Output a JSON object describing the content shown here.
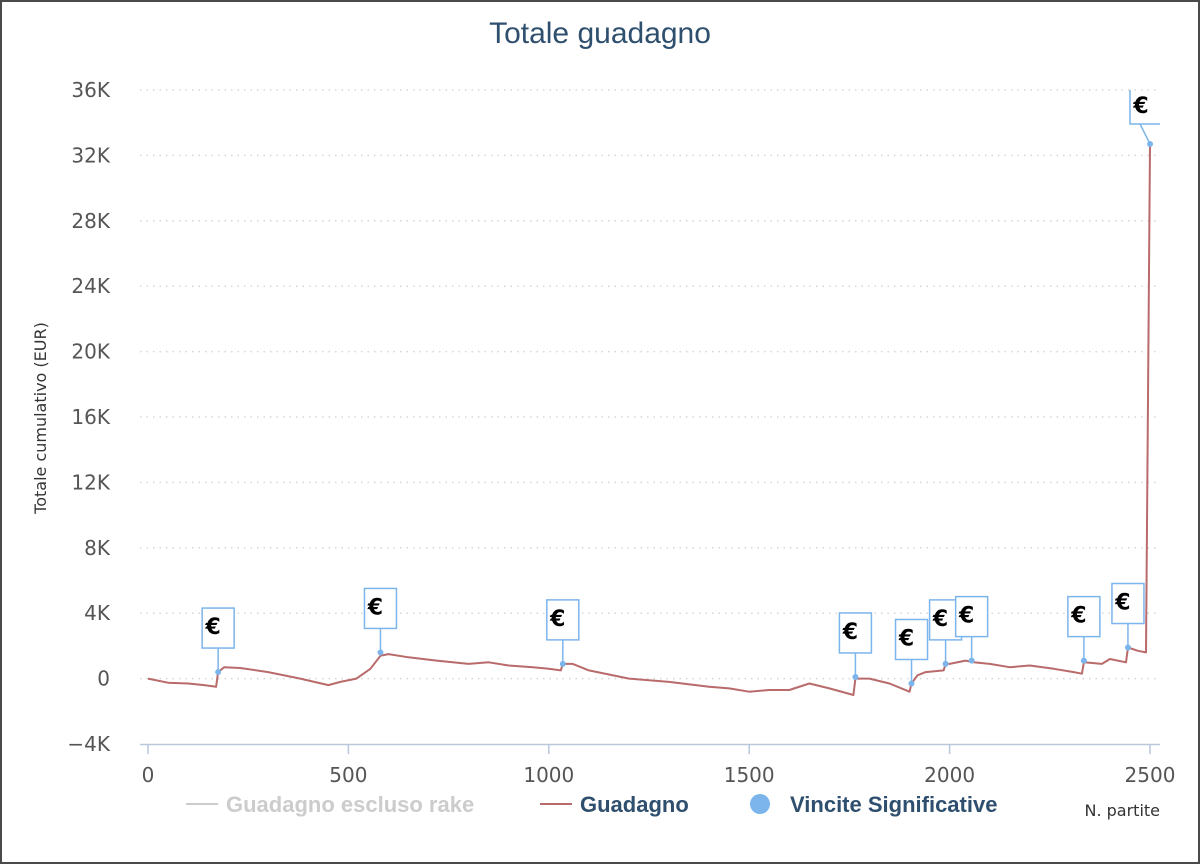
{
  "chart_data": {
    "type": "line",
    "title": "Totale guadagno",
    "xlabel": "N. partite",
    "ylabel": "Totale cumulativo (EUR)",
    "xlim": [
      0,
      2500
    ],
    "ylim": [
      -4000,
      36000
    ],
    "x_ticks": [
      {
        "value": 0,
        "label": "0"
      },
      {
        "value": 500,
        "label": "500"
      },
      {
        "value": 1000,
        "label": "1000"
      },
      {
        "value": 1500,
        "label": "1500"
      },
      {
        "value": 2000,
        "label": "2000"
      },
      {
        "value": 2500,
        "label": "2500"
      }
    ],
    "y_ticks": [
      {
        "value": -4000,
        "label": "−4K"
      },
      {
        "value": 0,
        "label": "0"
      },
      {
        "value": 4000,
        "label": "4K"
      },
      {
        "value": 8000,
        "label": "8K"
      },
      {
        "value": 12000,
        "label": "12K"
      },
      {
        "value": 16000,
        "label": "16K"
      },
      {
        "value": 20000,
        "label": "20K"
      },
      {
        "value": 24000,
        "label": "24K"
      },
      {
        "value": 28000,
        "label": "28K"
      },
      {
        "value": 32000,
        "label": "32K"
      },
      {
        "value": 36000,
        "label": "36K"
      }
    ],
    "grid": "horizontal-dotted",
    "legend_position": "bottom",
    "series": [
      {
        "name": "Guadagno escluso rake",
        "color": "#cccccc",
        "legend_color": "#cccccc",
        "visible": false,
        "points": []
      },
      {
        "name": "Guadagno",
        "color": "#b96a6a",
        "legend_color": "#2f4f6f",
        "visible": true,
        "points": [
          [
            0,
            0
          ],
          [
            50,
            -250
          ],
          [
            100,
            -300
          ],
          [
            140,
            -400
          ],
          [
            170,
            -500
          ],
          [
            175,
            400
          ],
          [
            190,
            700
          ],
          [
            230,
            650
          ],
          [
            300,
            400
          ],
          [
            380,
            0
          ],
          [
            450,
            -400
          ],
          [
            480,
            -200
          ],
          [
            520,
            0
          ],
          [
            555,
            600
          ],
          [
            580,
            1400
          ],
          [
            600,
            1500
          ],
          [
            650,
            1300
          ],
          [
            720,
            1100
          ],
          [
            800,
            900
          ],
          [
            850,
            1000
          ],
          [
            900,
            800
          ],
          [
            960,
            700
          ],
          [
            1000,
            600
          ],
          [
            1030,
            500
          ],
          [
            1035,
            900
          ],
          [
            1060,
            900
          ],
          [
            1100,
            500
          ],
          [
            1200,
            0
          ],
          [
            1300,
            -200
          ],
          [
            1400,
            -500
          ],
          [
            1450,
            -600
          ],
          [
            1500,
            -800
          ],
          [
            1550,
            -700
          ],
          [
            1600,
            -700
          ],
          [
            1650,
            -300
          ],
          [
            1700,
            -600
          ],
          [
            1760,
            -1000
          ],
          [
            1765,
            0
          ],
          [
            1800,
            0
          ],
          [
            1850,
            -300
          ],
          [
            1900,
            -800
          ],
          [
            1905,
            -300
          ],
          [
            1920,
            200
          ],
          [
            1940,
            400
          ],
          [
            1985,
            500
          ],
          [
            1990,
            900
          ],
          [
            2000,
            900
          ],
          [
            2040,
            1100
          ],
          [
            2060,
            1000
          ],
          [
            2100,
            900
          ],
          [
            2150,
            700
          ],
          [
            2200,
            800
          ],
          [
            2260,
            600
          ],
          [
            2310,
            400
          ],
          [
            2330,
            300
          ],
          [
            2335,
            1000
          ],
          [
            2380,
            900
          ],
          [
            2400,
            1200
          ],
          [
            2440,
            1000
          ],
          [
            2445,
            1900
          ],
          [
            2470,
            1700
          ],
          [
            2490,
            1600
          ],
          [
            2500,
            32700
          ]
        ]
      },
      {
        "name": "Vincite Significative",
        "color": "#7cb5ec",
        "legend_color": "#2f4f6f",
        "visible": true,
        "flag_label": "€",
        "points": [
          [
            175,
            400
          ],
          [
            580,
            1600
          ],
          [
            1035,
            900
          ],
          [
            1765,
            100
          ],
          [
            1905,
            -300
          ],
          [
            1990,
            900
          ],
          [
            2055,
            1100
          ],
          [
            2335,
            1100
          ],
          [
            2445,
            1900
          ],
          [
            2500,
            32700
          ]
        ]
      }
    ]
  }
}
